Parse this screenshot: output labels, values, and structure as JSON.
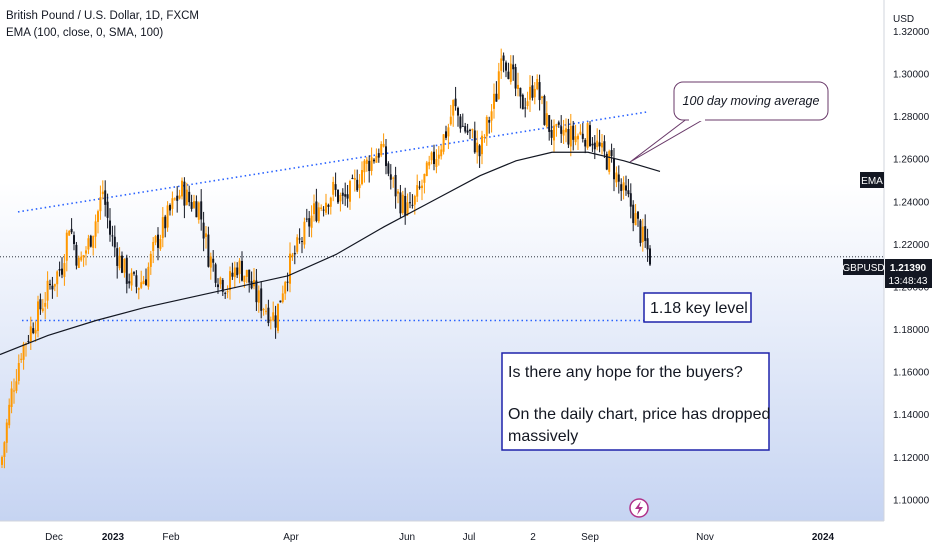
{
  "legend": {
    "symbol_title": "British Pound / U.S. Dollar, 1D, FXCM",
    "indicator": "EMA (100, close, 0, SMA, 100)"
  },
  "price_axis": {
    "currency": "USD",
    "ticks": [
      "1.32000",
      "1.30000",
      "1.28000",
      "1.26000",
      "1.24000",
      "1.22000",
      "1.20000",
      "1.18000",
      "1.16000",
      "1.14000",
      "1.12000",
      "1.10000"
    ],
    "ylim": [
      1.095,
      1.327
    ]
  },
  "time_axis": {
    "labels": [
      {
        "text": "Dec",
        "bold": false
      },
      {
        "text": "2023",
        "bold": true
      },
      {
        "text": "Feb",
        "bold": false
      },
      {
        "text": "Apr",
        "bold": false
      },
      {
        "text": "Jun",
        "bold": false
      },
      {
        "text": "Jul",
        "bold": false
      },
      {
        "text": "2",
        "bold": false
      },
      {
        "text": "Sep",
        "bold": false
      },
      {
        "text": "Nov",
        "bold": false
      },
      {
        "text": "2024",
        "bold": true
      }
    ]
  },
  "tags": {
    "ema": "EMA",
    "symbol": "GBPUSD",
    "last_price": "1.21390",
    "countdown": "13:48:43"
  },
  "colors": {
    "up": "#ff9800",
    "down": "#131722",
    "ema_line": "#131722",
    "trendline": "#2962ff",
    "box_border": "#1e22aa",
    "background_top": "#ffffff",
    "background_bottom": "#c6d4f2"
  },
  "annotations": {
    "ma_callout": "100 day moving average",
    "key_level_box": "1.18 key level",
    "question_box": {
      "line1": "Is there any hope for the buyers?",
      "line2": "On the daily chart, price has dropped",
      "line3": "massively"
    }
  },
  "chart_data": {
    "type": "candlestick",
    "symbol": "GBPUSD",
    "timeframe": "1D",
    "price_path": [
      [
        0,
        1.12
      ],
      [
        4,
        1.15
      ],
      [
        8,
        1.17
      ],
      [
        12,
        1.18
      ],
      [
        16,
        1.19
      ],
      [
        20,
        1.2
      ],
      [
        25,
        1.21
      ],
      [
        28,
        1.23
      ],
      [
        32,
        1.21
      ],
      [
        36,
        1.22
      ],
      [
        40,
        1.235
      ],
      [
        42,
        1.245
      ],
      [
        45,
        1.225
      ],
      [
        48,
        1.215
      ],
      [
        52,
        1.205
      ],
      [
        56,
        1.2
      ],
      [
        60,
        1.205
      ],
      [
        64,
        1.22
      ],
      [
        68,
        1.23
      ],
      [
        72,
        1.24
      ],
      [
        75,
        1.245
      ],
      [
        78,
        1.24
      ],
      [
        82,
        1.238
      ],
      [
        86,
        1.215
      ],
      [
        90,
        1.205
      ],
      [
        94,
        1.2
      ],
      [
        98,
        1.21
      ],
      [
        102,
        1.205
      ],
      [
        106,
        1.195
      ],
      [
        110,
        1.19
      ],
      [
        114,
        1.185
      ],
      [
        118,
        1.205
      ],
      [
        122,
        1.215
      ],
      [
        126,
        1.225
      ],
      [
        130,
        1.235
      ],
      [
        134,
        1.24
      ],
      [
        138,
        1.245
      ],
      [
        142,
        1.24
      ],
      [
        146,
        1.245
      ],
      [
        150,
        1.255
      ],
      [
        154,
        1.26
      ],
      [
        158,
        1.265
      ],
      [
        162,
        1.25
      ],
      [
        166,
        1.24
      ],
      [
        170,
        1.235
      ],
      [
        174,
        1.245
      ],
      [
        178,
        1.255
      ],
      [
        182,
        1.265
      ],
      [
        186,
        1.275
      ],
      [
        188,
        1.285
      ],
      [
        192,
        1.275
      ],
      [
        196,
        1.27
      ],
      [
        199,
        1.262
      ],
      [
        202,
        1.275
      ],
      [
        206,
        1.29
      ],
      [
        208,
        1.313
      ],
      [
        212,
        1.3
      ],
      [
        216,
        1.285
      ],
      [
        220,
        1.29
      ],
      [
        222,
        1.297
      ],
      [
        226,
        1.28
      ],
      [
        230,
        1.27
      ],
      [
        234,
        1.272
      ],
      [
        238,
        1.27
      ],
      [
        242,
        1.272
      ],
      [
        246,
        1.27
      ],
      [
        250,
        1.262
      ],
      [
        254,
        1.258
      ],
      [
        258,
        1.245
      ],
      [
        262,
        1.238
      ],
      [
        266,
        1.225
      ],
      [
        270,
        1.214
      ]
    ],
    "ema_path": [
      [
        0,
        1.168
      ],
      [
        20,
        1.177
      ],
      [
        40,
        1.184
      ],
      [
        60,
        1.19
      ],
      [
        80,
        1.195
      ],
      [
        100,
        1.2
      ],
      [
        120,
        1.205
      ],
      [
        140,
        1.215
      ],
      [
        160,
        1.228
      ],
      [
        180,
        1.24
      ],
      [
        200,
        1.252
      ],
      [
        215,
        1.259
      ],
      [
        230,
        1.263
      ],
      [
        245,
        1.263
      ],
      [
        260,
        1.259
      ],
      [
        275,
        1.254
      ]
    ],
    "x_range": [
      0,
      400
    ],
    "ylim": [
      1.095,
      1.327
    ],
    "support_level": 1.184,
    "resistance_trendline": {
      "start": [
        0,
        1.235
      ],
      "end": [
        270,
        1.282
      ]
    },
    "last_price": 1.2139,
    "grid": false,
    "legend_position": "top-left"
  }
}
